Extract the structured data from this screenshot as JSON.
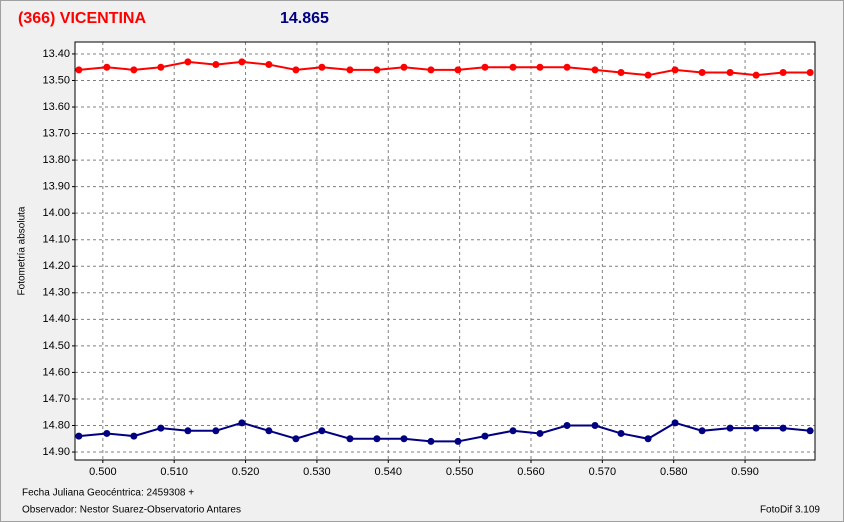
{
  "chart_data": {
    "type": "line",
    "title": "(366) VICENTINA",
    "subtitle": "14.865",
    "ylabel": "Fotometría absoluta",
    "xlabel": "Fecha Juliana Geocéntrica: 2459308 +",
    "observer": "Observador: Nestor Suarez-Observatorio Antares",
    "software": "FotoDif 3.109",
    "x": [
      0.49664,
      0.50056,
      0.50435,
      0.50813,
      0.51192,
      0.51584,
      0.51949,
      0.52327,
      0.52706,
      0.5307,
      0.53463,
      0.53841,
      0.5422,
      0.54598,
      0.54977,
      0.55355,
      0.55748,
      0.56126,
      0.56505,
      0.56897,
      0.57262,
      0.57641,
      0.58019,
      0.58398,
      0.5879,
      0.59155,
      0.59533,
      0.59912
    ],
    "series": [
      {
        "color": "#ff0000",
        "values": [
          13.46,
          13.45,
          13.46,
          13.45,
          13.43,
          13.44,
          13.43,
          13.44,
          13.46,
          13.45,
          13.46,
          13.46,
          13.45,
          13.46,
          13.46,
          13.45,
          13.45,
          13.45,
          13.45,
          13.46,
          13.47,
          13.48,
          13.46,
          13.47,
          13.47,
          13.48,
          13.47,
          13.47
        ]
      },
      {
        "color": "#000080",
        "values": [
          14.84,
          14.83,
          14.84,
          14.81,
          14.82,
          14.82,
          14.79,
          14.82,
          14.85,
          14.82,
          14.85,
          14.85,
          14.85,
          14.86,
          14.86,
          14.84,
          14.82,
          14.83,
          14.8,
          14.8,
          14.83,
          14.85,
          14.79,
          14.82,
          14.81,
          14.81,
          14.81,
          14.82
        ]
      }
    ],
    "xlim": [
      0.4961,
      0.5998
    ],
    "ylim": [
      13.355,
      14.93
    ],
    "y_inverted": true,
    "grid": true,
    "xticks": [
      {
        "value": 0.5,
        "label": "0.500"
      },
      {
        "value": 0.51,
        "label": "0.510"
      },
      {
        "value": 0.52,
        "label": "0.520"
      },
      {
        "value": 0.53,
        "label": "0.530"
      },
      {
        "value": 0.54,
        "label": "0.540"
      },
      {
        "value": 0.55,
        "label": "0.550"
      },
      {
        "value": 0.56,
        "label": "0.560"
      },
      {
        "value": 0.57,
        "label": "0.570"
      },
      {
        "value": 0.58,
        "label": "0.580"
      },
      {
        "value": 0.59,
        "label": "0.590"
      }
    ],
    "yticks": [
      {
        "value": 13.4,
        "label": "13.40"
      },
      {
        "value": 13.5,
        "label": "13.50"
      },
      {
        "value": 13.6,
        "label": "13.60"
      },
      {
        "value": 13.7,
        "label": "13.70"
      },
      {
        "value": 13.8,
        "label": "13.80"
      },
      {
        "value": 13.9,
        "label": "13.90"
      },
      {
        "value": 14.0,
        "label": "14.00"
      },
      {
        "value": 14.1,
        "label": "14.10"
      },
      {
        "value": 14.2,
        "label": "14.20"
      },
      {
        "value": 14.3,
        "label": "14.30"
      },
      {
        "value": 14.4,
        "label": "14.40"
      },
      {
        "value": 14.5,
        "label": "14.50"
      },
      {
        "value": 14.6,
        "label": "14.60"
      },
      {
        "value": 14.7,
        "label": "14.70"
      },
      {
        "value": 14.8,
        "label": "14.80"
      },
      {
        "value": 14.9,
        "label": "14.90"
      }
    ]
  }
}
